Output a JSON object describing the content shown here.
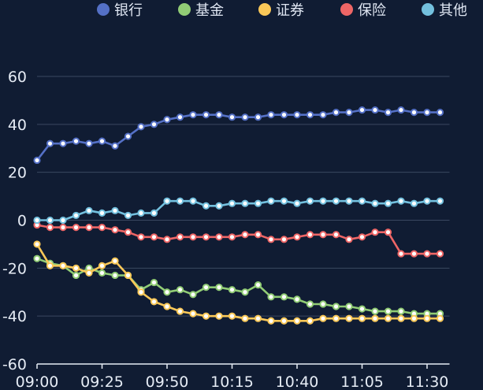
{
  "chart_data": {
    "type": "line",
    "title": "",
    "xlabel": "",
    "ylabel": "",
    "ylim": [
      -60,
      60
    ],
    "yticks": [
      -60,
      -40,
      -20,
      0,
      20,
      40,
      60
    ],
    "x_start_minutes": 540,
    "x_step_minutes": 5,
    "x_tick_labels": [
      "09:00",
      "09:25",
      "09:50",
      "10:15",
      "10:40",
      "11:05",
      "11:30"
    ],
    "grid": true,
    "legend_position": "top",
    "series": [
      {
        "name": "银行",
        "color": "#5470c6",
        "values": [
          25,
          32,
          32,
          33,
          32,
          33,
          31,
          35,
          39,
          40,
          42,
          43,
          44,
          44,
          44,
          43,
          43,
          43,
          44,
          44,
          44,
          44,
          44,
          45,
          45,
          46,
          46,
          45,
          46,
          45,
          45,
          45
        ]
      },
      {
        "name": "基金",
        "color": "#91cc75",
        "values": [
          -16,
          -18,
          -19,
          -23,
          -20,
          -22,
          -23,
          -23,
          -29,
          -26,
          -30,
          -29,
          -31,
          -28,
          -28,
          -29,
          -30,
          -27,
          -32,
          -32,
          -33,
          -35,
          -35,
          -36,
          -36,
          -37,
          -38,
          -38,
          -38,
          -39,
          -39,
          -39
        ]
      },
      {
        "name": "证券",
        "color": "#fac858",
        "values": [
          -10,
          -19,
          -19,
          -20,
          -22,
          -19,
          -17,
          -23,
          -30,
          -34,
          -36,
          -38,
          -39,
          -40,
          -40,
          -40,
          -41,
          -41,
          -42,
          -42,
          -42,
          -42,
          -41,
          -41,
          -41,
          -41,
          -41,
          -41,
          -41,
          -41,
          -41,
          -41
        ]
      },
      {
        "name": "保险",
        "color": "#ee6666",
        "values": [
          -2,
          -3,
          -3,
          -3,
          -3,
          -3,
          -4,
          -5,
          -7,
          -7,
          -8,
          -7,
          -7,
          -7,
          -7,
          -7,
          -6,
          -6,
          -8,
          -8,
          -7,
          -6,
          -6,
          -6,
          -8,
          -7,
          -5,
          -5,
          -14,
          -14,
          -14,
          -14
        ]
      },
      {
        "name": "其他",
        "color": "#73c0de",
        "values": [
          0,
          0,
          0,
          2,
          4,
          3,
          4,
          2,
          3,
          3,
          8,
          8,
          8,
          6,
          6,
          7,
          7,
          7,
          8,
          8,
          7,
          8,
          8,
          8,
          8,
          8,
          7,
          7,
          8,
          7,
          8,
          8
        ]
      }
    ]
  }
}
